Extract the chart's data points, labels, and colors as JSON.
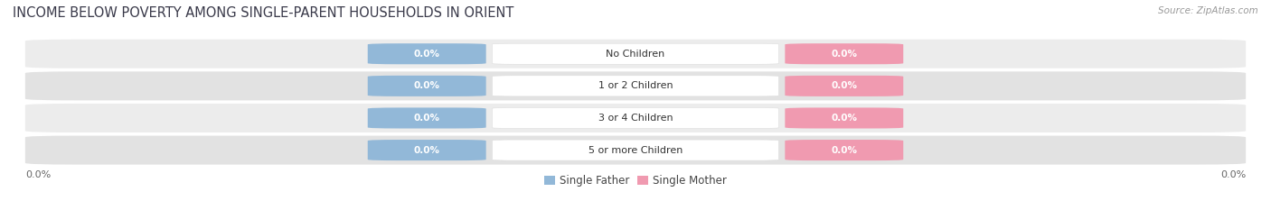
{
  "title": "INCOME BELOW POVERTY AMONG SINGLE-PARENT HOUSEHOLDS IN ORIENT",
  "source": "Source: ZipAtlas.com",
  "categories": [
    "No Children",
    "1 or 2 Children",
    "3 or 4 Children",
    "5 or more Children"
  ],
  "single_father_values": [
    0.0,
    0.0,
    0.0,
    0.0
  ],
  "single_mother_values": [
    0.0,
    0.0,
    0.0,
    0.0
  ],
  "father_color": "#92b8d8",
  "mother_color": "#f09ab0",
  "row_bg_even": "#ececec",
  "row_bg_odd": "#e2e2e2",
  "title_color": "#3a3a4a",
  "source_color": "#999999",
  "axis_label_color": "#666666",
  "cat_label_color": "#333333",
  "val_label_color": "#ffffff",
  "title_fontsize": 10.5,
  "source_fontsize": 7.5,
  "val_label_fontsize": 7.5,
  "cat_label_fontsize": 8,
  "axis_label_fontsize": 8,
  "legend_fontsize": 8.5,
  "x_left_label": "0.0%",
  "x_right_label": "0.0%",
  "figsize": [
    14.06,
    2.33
  ],
  "dpi": 100
}
